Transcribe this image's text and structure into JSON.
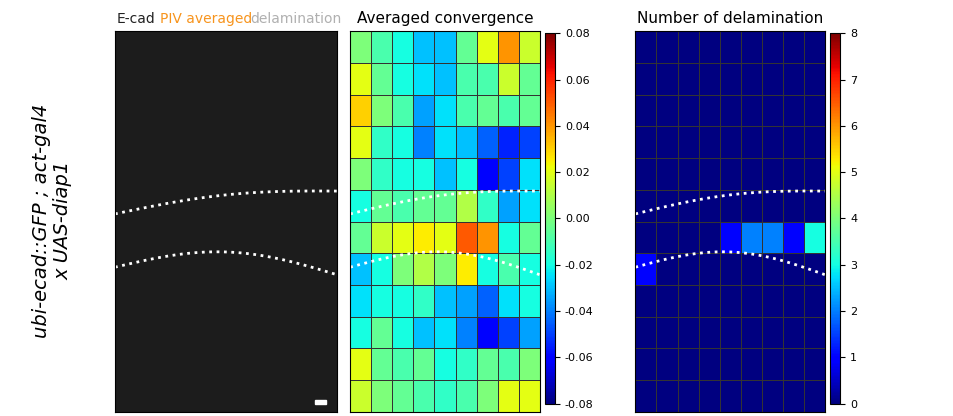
{
  "chart_data": [
    {
      "type": "image",
      "labels": [
        "E-cad",
        "PIV averaged",
        "delamination"
      ],
      "colors": [
        "#222222",
        "#f7941d",
        "#b0b0b0"
      ],
      "ylabel": "ubi-ecad::GFP ; act-gal4\nx UAS-diap1",
      "tick_labels": false
    },
    {
      "type": "heatmap",
      "title": "Averaged convergence",
      "color": "jet",
      "tick_labels": false,
      "cells": [
        [
          0.0,
          -0.01,
          -0.02,
          -0.03,
          -0.03,
          -0.005,
          0.02,
          0.04,
          0.015
        ],
        [
          0.02,
          -0.005,
          -0.02,
          -0.025,
          -0.03,
          -0.01,
          -0.01,
          0.015,
          -0.005
        ],
        [
          0.03,
          0.0,
          -0.01,
          -0.035,
          -0.025,
          -0.01,
          -0.005,
          -0.01,
          -0.005
        ],
        [
          0.02,
          -0.015,
          -0.02,
          -0.04,
          -0.025,
          -0.03,
          -0.045,
          -0.055,
          -0.05
        ],
        [
          0.0,
          -0.015,
          -0.02,
          -0.02,
          -0.03,
          -0.02,
          -0.06,
          -0.05,
          -0.025
        ],
        [
          -0.02,
          -0.005,
          -0.01,
          -0.005,
          -0.005,
          0.01,
          -0.015,
          -0.035,
          -0.025
        ],
        [
          -0.005,
          0.015,
          0.02,
          0.025,
          0.02,
          0.05,
          0.04,
          -0.02,
          -0.005
        ],
        [
          -0.03,
          -0.02,
          0.0,
          0.01,
          0.0,
          0.025,
          -0.02,
          -0.01,
          -0.02
        ],
        [
          -0.025,
          -0.02,
          -0.02,
          -0.015,
          -0.03,
          -0.035,
          -0.045,
          -0.025,
          -0.02
        ],
        [
          -0.02,
          -0.005,
          -0.02,
          -0.03,
          -0.025,
          -0.04,
          -0.06,
          -0.05,
          -0.035
        ],
        [
          0.02,
          -0.005,
          -0.01,
          -0.005,
          -0.02,
          -0.015,
          -0.005,
          -0.01,
          0.0
        ],
        [
          0.015,
          0.0,
          -0.005,
          -0.01,
          -0.015,
          -0.01,
          0.0,
          0.02,
          0.02
        ]
      ],
      "colorbar_range": [
        -0.08,
        0.08
      ],
      "colorbar_ticks": [
        -0.08,
        -0.06,
        -0.04,
        -0.02,
        {
          "value": 0,
          "label": "0.00"
        },
        0.02,
        0.04,
        0.06,
        0.08
      ]
    },
    {
      "type": "heatmap",
      "title": "Number of delamination",
      "color": "jet",
      "tick_labels": false,
      "cells": [
        [
          0,
          0,
          0,
          0,
          0,
          0,
          0,
          0,
          0
        ],
        [
          0,
          0,
          0,
          0,
          0,
          0,
          0,
          0,
          0
        ],
        [
          0,
          0,
          0,
          0,
          0,
          0,
          0,
          0,
          0
        ],
        [
          0,
          0,
          0,
          0,
          0,
          0,
          0,
          0,
          0
        ],
        [
          0,
          0,
          0,
          0,
          0,
          0,
          0,
          0,
          0
        ],
        [
          0,
          0,
          0,
          0,
          0,
          0,
          0,
          0,
          0
        ],
        [
          0,
          0,
          0,
          0,
          1,
          2,
          2,
          1,
          3
        ],
        [
          1,
          0,
          0,
          0,
          0,
          0,
          0,
          0,
          0
        ],
        [
          0,
          0,
          0,
          0,
          0,
          0,
          0,
          0,
          0
        ],
        [
          0,
          0,
          0,
          0,
          0,
          0,
          0,
          0,
          0
        ],
        [
          0,
          0,
          0,
          0,
          0,
          0,
          0,
          0,
          0
        ],
        [
          0,
          0,
          0,
          0,
          0,
          0,
          0,
          0,
          0
        ]
      ],
      "colorbar_range": [
        0,
        8
      ],
      "colorbar_ticks": [
        0,
        1,
        2,
        3,
        4,
        5,
        6,
        7,
        8
      ]
    }
  ]
}
